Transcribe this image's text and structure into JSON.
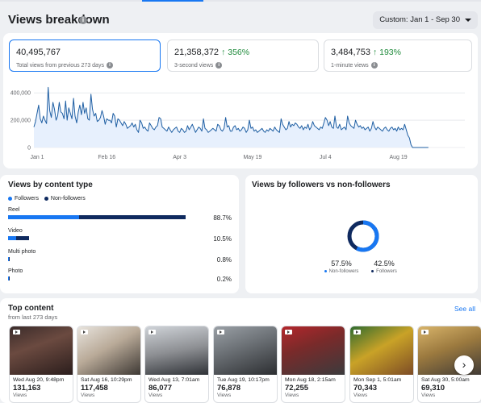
{
  "header": {
    "title": "Views breakdown",
    "date_range": "Custom: Jan 1 - Sep 30"
  },
  "metrics": [
    {
      "value": "40,495,767",
      "change": "",
      "label": "Total views from previous 273 days",
      "active": true
    },
    {
      "value": "21,358,372",
      "change": "↑ 356%",
      "label": "3-second views",
      "active": false
    },
    {
      "value": "3,484,753",
      "change": "↑ 193%",
      "label": "1-minute views",
      "active": false
    }
  ],
  "chart_data": {
    "type": "area",
    "y_ticks": [
      "400,000",
      "200,000",
      "0"
    ],
    "ylim": [
      0,
      460000
    ],
    "x_labels": [
      "Jan 1",
      "Feb 16",
      "Apr 3",
      "May 19",
      "Jul 4",
      "Aug 19"
    ],
    "x_label_days": [
      0,
      46,
      92,
      138,
      184,
      230
    ],
    "days": 273,
    "values": [
      150000,
      190000,
      250000,
      310000,
      210000,
      180000,
      230000,
      200000,
      175000,
      440000,
      270000,
      220000,
      330000,
      280000,
      200000,
      230000,
      330000,
      260000,
      250000,
      210000,
      340000,
      200000,
      290000,
      250000,
      210000,
      360000,
      230000,
      180000,
      260000,
      310000,
      240000,
      330000,
      250000,
      290000,
      210000,
      200000,
      390000,
      280000,
      230000,
      250000,
      190000,
      200000,
      220000,
      270000,
      230000,
      170000,
      210000,
      200000,
      200000,
      180000,
      250000,
      230000,
      150000,
      210000,
      200000,
      180000,
      160000,
      190000,
      170000,
      140000,
      150000,
      160000,
      180000,
      150000,
      170000,
      130000,
      110000,
      200000,
      180000,
      140000,
      150000,
      130000,
      120000,
      180000,
      160000,
      140000,
      130000,
      150000,
      160000,
      220000,
      210000,
      150000,
      140000,
      130000,
      120000,
      150000,
      130000,
      110000,
      130000,
      140000,
      150000,
      120000,
      110000,
      140000,
      130000,
      110000,
      120000,
      160000,
      130000,
      150000,
      170000,
      140000,
      110000,
      130000,
      150000,
      140000,
      120000,
      210000,
      140000,
      130000,
      110000,
      120000,
      130000,
      140000,
      130000,
      120000,
      170000,
      160000,
      130000,
      120000,
      140000,
      220000,
      150000,
      160000,
      120000,
      120000,
      150000,
      160000,
      130000,
      140000,
      120000,
      130000,
      150000,
      140000,
      110000,
      130000,
      200000,
      140000,
      150000,
      120000,
      130000,
      110000,
      120000,
      130000,
      140000,
      120000,
      110000,
      130000,
      120000,
      140000,
      130000,
      120000,
      150000,
      130000,
      120000,
      110000,
      210000,
      170000,
      150000,
      130000,
      140000,
      190000,
      150000,
      170000,
      160000,
      180000,
      170000,
      150000,
      140000,
      160000,
      130000,
      150000,
      140000,
      170000,
      130000,
      150000,
      190000,
      160000,
      150000,
      140000,
      130000,
      150000,
      140000,
      180000,
      220000,
      200000,
      160000,
      190000,
      150000,
      140000,
      230000,
      150000,
      140000,
      170000,
      130000,
      140000,
      150000,
      130000,
      230000,
      180000,
      160000,
      150000,
      140000,
      200000,
      170000,
      150000,
      160000,
      140000,
      150000,
      130000,
      140000,
      150000,
      120000,
      140000,
      190000,
      150000,
      130000,
      150000,
      140000,
      130000,
      120000,
      140000,
      150000,
      130000,
      120000,
      140000,
      150000,
      130000,
      140000,
      120000,
      150000,
      130000,
      140000,
      130000,
      170000,
      130000,
      90000,
      70000,
      20000,
      0,
      0,
      0,
      0,
      0,
      0,
      0,
      0,
      0,
      0,
      0
    ]
  },
  "content_type": {
    "title": "Views by content type",
    "legend": [
      "Followers",
      "Non-followers"
    ],
    "rows": [
      {
        "name": "Reel",
        "pct": "88.7%",
        "total": 0.887,
        "followers": 0.4
      },
      {
        "name": "Video",
        "pct": "10.5%",
        "total": 0.105,
        "followers": 0.4
      },
      {
        "name": "Multi photo",
        "pct": "0.8%",
        "total": 0.008,
        "followers": 0.5
      },
      {
        "name": "Photo",
        "pct": "0.2%",
        "total": 0.002,
        "followers": 0.5
      }
    ]
  },
  "followers_split": {
    "title": "Views by followers vs non-followers",
    "non_followers_pct": "57.5%",
    "non_followers_label": "Non-followers",
    "followers_pct": "42.5%",
    "followers_label": "Followers",
    "non_followers_share": 0.575
  },
  "top_content": {
    "title": "Top content",
    "subtitle": "from last 273 days",
    "see_all": "See all",
    "items": [
      {
        "date": "Wed Aug 20, 9:48pm",
        "views": "131,163",
        "views_label": "Views"
      },
      {
        "date": "Sat Aug 16, 10:29pm",
        "views": "117,458",
        "views_label": "Views"
      },
      {
        "date": "Wed Aug 13, 7:01am",
        "views": "86,077",
        "views_label": "Views"
      },
      {
        "date": "Tue Aug 19, 10:17pm",
        "views": "76,878",
        "views_label": "Views"
      },
      {
        "date": "Mon Aug 18, 2:15am",
        "views": "72,255",
        "views_label": "Views"
      },
      {
        "date": "Mon Sep 1, 5:01am",
        "views": "70,343",
        "views_label": "Views"
      },
      {
        "date": "Sat Aug 30, 5:00am",
        "views": "69,310",
        "views_label": "Views"
      }
    ]
  },
  "colors": {
    "accent": "#1877f2",
    "dark_series": "#0f2a5f",
    "positive": "#1f8a3b"
  }
}
